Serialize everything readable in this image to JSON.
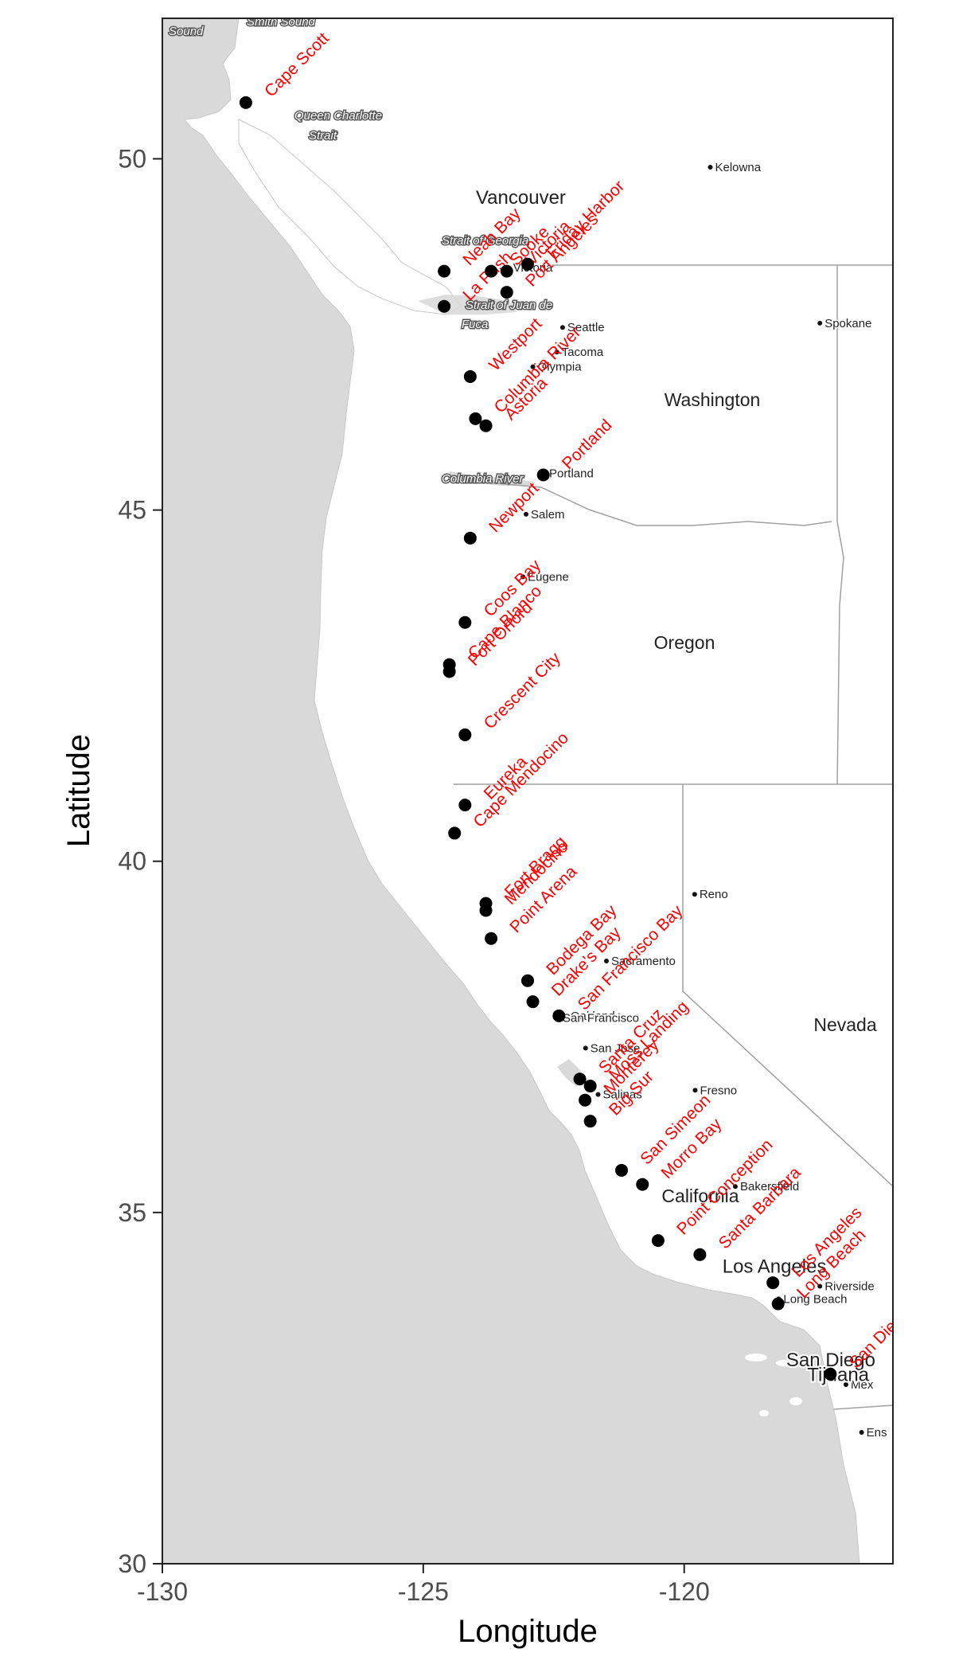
{
  "chart_data": {
    "type": "scatter",
    "title": "",
    "xlabel": "Longitude",
    "ylabel": "Latitude",
    "xlim": [
      -130,
      -116
    ],
    "ylim": [
      30,
      52
    ],
    "xticks": [
      {
        "value": -130,
        "label": "-130"
      },
      {
        "value": -125,
        "label": "-125"
      },
      {
        "value": -120,
        "label": "-120"
      }
    ],
    "yticks": [
      {
        "value": 30,
        "label": "30"
      },
      {
        "value": 35,
        "label": "35"
      },
      {
        "value": 40,
        "label": "40"
      },
      {
        "value": 45,
        "label": "45"
      },
      {
        "value": 50,
        "label": "50"
      }
    ],
    "points": [
      {
        "name": "Cape Scott",
        "lon": -128.4,
        "lat": 50.8
      },
      {
        "name": "Sooke",
        "lon": -123.7,
        "lat": 48.4
      },
      {
        "name": "Victoria",
        "lon": -123.4,
        "lat": 48.4
      },
      {
        "name": "Friday Harbor",
        "lon": -123.0,
        "lat": 48.5
      },
      {
        "name": "Port Angeles",
        "lon": -123.4,
        "lat": 48.1
      },
      {
        "name": "Neah Bay",
        "lon": -124.6,
        "lat": 48.4
      },
      {
        "name": "La Push",
        "lon": -124.6,
        "lat": 47.9
      },
      {
        "name": "Westport",
        "lon": -124.1,
        "lat": 46.9
      },
      {
        "name": "Columbia River",
        "lon": -124.0,
        "lat": 46.3
      },
      {
        "name": "Astoria",
        "lon": -123.8,
        "lat": 46.2
      },
      {
        "name": "Portland",
        "lon": -122.7,
        "lat": 45.5
      },
      {
        "name": "Newport",
        "lon": -124.1,
        "lat": 44.6
      },
      {
        "name": "Coos Bay",
        "lon": -124.2,
        "lat": 43.4
      },
      {
        "name": "Cape Blanco",
        "lon": -124.5,
        "lat": 42.8
      },
      {
        "name": "Port Orford",
        "lon": -124.5,
        "lat": 42.7
      },
      {
        "name": "Crescent City",
        "lon": -124.2,
        "lat": 41.8
      },
      {
        "name": "Eureka",
        "lon": -124.2,
        "lat": 40.8
      },
      {
        "name": "Cape Mendocino",
        "lon": -124.4,
        "lat": 40.4
      },
      {
        "name": "Fort Bragg",
        "lon": -123.8,
        "lat": 39.4
      },
      {
        "name": "Mendocino",
        "lon": -123.8,
        "lat": 39.3
      },
      {
        "name": "Point Arena",
        "lon": -123.7,
        "lat": 38.9
      },
      {
        "name": "Bodega Bay",
        "lon": -123.0,
        "lat": 38.3
      },
      {
        "name": "Drake's Bay",
        "lon": -122.9,
        "lat": 38.0
      },
      {
        "name": "San Francisco Bay",
        "lon": -122.4,
        "lat": 37.8
      },
      {
        "name": "Santa Cruz",
        "lon": -122.0,
        "lat": 36.9
      },
      {
        "name": "Moss Landing",
        "lon": -121.8,
        "lat": 36.8
      },
      {
        "name": "Monterey",
        "lon": -121.9,
        "lat": 36.6
      },
      {
        "name": "Big Sur",
        "lon": -121.8,
        "lat": 36.3
      },
      {
        "name": "San Simeon",
        "lon": -121.2,
        "lat": 35.6
      },
      {
        "name": "Morro Bay",
        "lon": -120.8,
        "lat": 35.4
      },
      {
        "name": "Point Conception",
        "lon": -120.5,
        "lat": 34.6
      },
      {
        "name": "Santa Barbara",
        "lon": -119.7,
        "lat": 34.4
      },
      {
        "name": "Los Angeles",
        "lon": -118.3,
        "lat": 34.0
      },
      {
        "name": "Long Beach",
        "lon": -118.2,
        "lat": 33.7
      },
      {
        "name": "San Diego",
        "lon": -117.2,
        "lat": 32.7
      }
    ],
    "grid": false,
    "legend": "none",
    "point_color": "#000000",
    "label_color": "#ff0000",
    "ocean_color": "#d9d9d9",
    "land_color": "#ffffff",
    "border_color": "#a0a0a0"
  },
  "basemap": {
    "water_labels": [
      "Sound",
      "Smith Sound",
      "Queen Charlotte",
      "Strait",
      "Strait of Georgia",
      "Strait of Juan de",
      "Fuca",
      "Columbia River"
    ],
    "cities": [
      {
        "name": "Vancouver",
        "lon": -123.1,
        "lat": 49.27,
        "major": true
      },
      {
        "name": "Victoria",
        "lon": -123.37,
        "lat": 48.45,
        "major": false
      },
      {
        "name": "Kelowna",
        "lon": -119.5,
        "lat": 49.88,
        "major": false
      },
      {
        "name": "Spokane",
        "lon": -117.4,
        "lat": 47.66,
        "major": false
      },
      {
        "name": "Seattle",
        "lon": -122.33,
        "lat": 47.6,
        "major": false
      },
      {
        "name": "Tacoma",
        "lon": -122.44,
        "lat": 47.25,
        "major": false
      },
      {
        "name": "Olympia",
        "lon": -122.9,
        "lat": 47.04,
        "major": false
      },
      {
        "name": "Portland",
        "lon": -122.68,
        "lat": 45.52,
        "major": false
      },
      {
        "name": "Salem",
        "lon": -123.03,
        "lat": 44.94,
        "major": false
      },
      {
        "name": "Eugene",
        "lon": -123.09,
        "lat": 44.05,
        "major": false
      },
      {
        "name": "Reno",
        "lon": -119.8,
        "lat": 39.53,
        "major": false
      },
      {
        "name": "Sacramento",
        "lon": -121.49,
        "lat": 38.58,
        "major": false
      },
      {
        "name": "Oakland",
        "lon": -122.27,
        "lat": 37.8,
        "major": false
      },
      {
        "name": "San Francisco",
        "lon": -122.42,
        "lat": 37.77,
        "major": false
      },
      {
        "name": "San Jose",
        "lon": -121.89,
        "lat": 37.34,
        "major": false
      },
      {
        "name": "Salinas",
        "lon": -121.65,
        "lat": 36.68,
        "major": false
      },
      {
        "name": "Fresno",
        "lon": -119.79,
        "lat": 36.74,
        "major": false
      },
      {
        "name": "Bakersfield",
        "lon": -119.02,
        "lat": 35.37,
        "major": false
      },
      {
        "name": "Los Angeles",
        "lon": -118.24,
        "lat": 34.05,
        "major": true
      },
      {
        "name": "Riverside",
        "lon": -117.4,
        "lat": 33.95,
        "major": false
      },
      {
        "name": "Long Beach",
        "lon": -118.19,
        "lat": 33.77,
        "major": false
      },
      {
        "name": "San Diego",
        "lon": -117.16,
        "lat": 32.72,
        "major": true
      },
      {
        "name": "Mex",
        "lon": -116.9,
        "lat": 32.55,
        "major": false
      },
      {
        "name": "Tijuana",
        "lon": -117.02,
        "lat": 32.51,
        "major": true
      },
      {
        "name": "Ens",
        "lon": -116.6,
        "lat": 31.87,
        "major": false
      }
    ],
    "regions": [
      "Washington",
      "Oregon",
      "California",
      "Nevada"
    ]
  }
}
